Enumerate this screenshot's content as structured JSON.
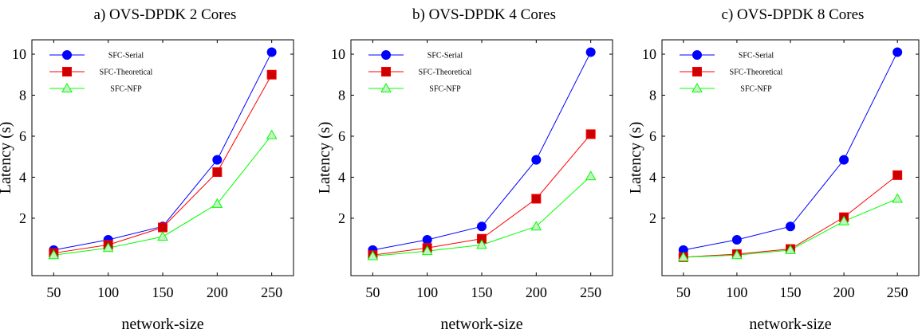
{
  "chart_data": [
    {
      "type": "line",
      "title": "a) OVS-DPDK 2 Cores",
      "xlabel": "network-size",
      "ylabel": "Latency (s)",
      "x": [
        50,
        100,
        150,
        200,
        250
      ],
      "xticks": [
        "50",
        "100",
        "150",
        "200",
        "250"
      ],
      "yticks": [
        "2",
        "4",
        "6",
        "8",
        "10"
      ],
      "xlim": [
        30,
        270
      ],
      "ylim": [
        -0.8,
        10.7
      ],
      "legend_position": "top-left",
      "grid": false,
      "series": [
        {
          "name": "SFC-Serial",
          "values": [
            0.45,
            0.95,
            1.6,
            4.85,
            10.1
          ],
          "color": "#0000ff",
          "marker": "circle"
        },
        {
          "name": "SFC-Theoretical",
          "values": [
            0.3,
            0.7,
            1.55,
            4.25,
            9.0
          ],
          "color": "#ff0000",
          "marker": "square"
        },
        {
          "name": "SFC-NFP",
          "values": [
            0.2,
            0.55,
            1.1,
            2.7,
            6.05
          ],
          "color": "#00ff00",
          "marker": "triangle"
        }
      ]
    },
    {
      "type": "line",
      "title": "b) OVS-DPDK 4 Cores",
      "xlabel": "network-size",
      "ylabel": "Latency (s)",
      "x": [
        50,
        100,
        150,
        200,
        250
      ],
      "xticks": [
        "50",
        "100",
        "150",
        "200",
        "250"
      ],
      "yticks": [
        "2",
        "4",
        "6",
        "8",
        "10"
      ],
      "xlim": [
        30,
        270
      ],
      "ylim": [
        -0.8,
        10.7
      ],
      "legend_position": "top-left",
      "grid": false,
      "series": [
        {
          "name": "SFC-Serial",
          "values": [
            0.45,
            0.95,
            1.6,
            4.85,
            10.1
          ],
          "color": "#0000ff",
          "marker": "circle"
        },
        {
          "name": "SFC-Theoretical",
          "values": [
            0.2,
            0.55,
            1.0,
            2.95,
            6.1
          ],
          "color": "#ff0000",
          "marker": "square"
        },
        {
          "name": "SFC-NFP",
          "values": [
            0.15,
            0.4,
            0.7,
            1.6,
            4.05
          ],
          "color": "#00ff00",
          "marker": "triangle"
        }
      ]
    },
    {
      "type": "line",
      "title": "c) OVS-DPDK 8 Cores",
      "xlabel": "network-size",
      "ylabel": "Latency (s)",
      "x": [
        50,
        100,
        150,
        200,
        250
      ],
      "xticks": [
        "50",
        "100",
        "150",
        "200",
        "250"
      ],
      "yticks": [
        "2",
        "4",
        "6",
        "8",
        "10"
      ],
      "xlim": [
        30,
        270
      ],
      "ylim": [
        -0.8,
        10.7
      ],
      "legend_position": "top-left",
      "grid": false,
      "series": [
        {
          "name": "SFC-Serial",
          "values": [
            0.45,
            0.95,
            1.6,
            4.85,
            10.1
          ],
          "color": "#0000ff",
          "marker": "circle"
        },
        {
          "name": "SFC-Theoretical",
          "values": [
            0.1,
            0.25,
            0.5,
            2.05,
            4.1
          ],
          "color": "#ff0000",
          "marker": "square"
        },
        {
          "name": "SFC-NFP",
          "values": [
            0.1,
            0.2,
            0.45,
            1.85,
            2.95
          ],
          "color": "#00ff00",
          "marker": "triangle"
        }
      ]
    }
  ]
}
